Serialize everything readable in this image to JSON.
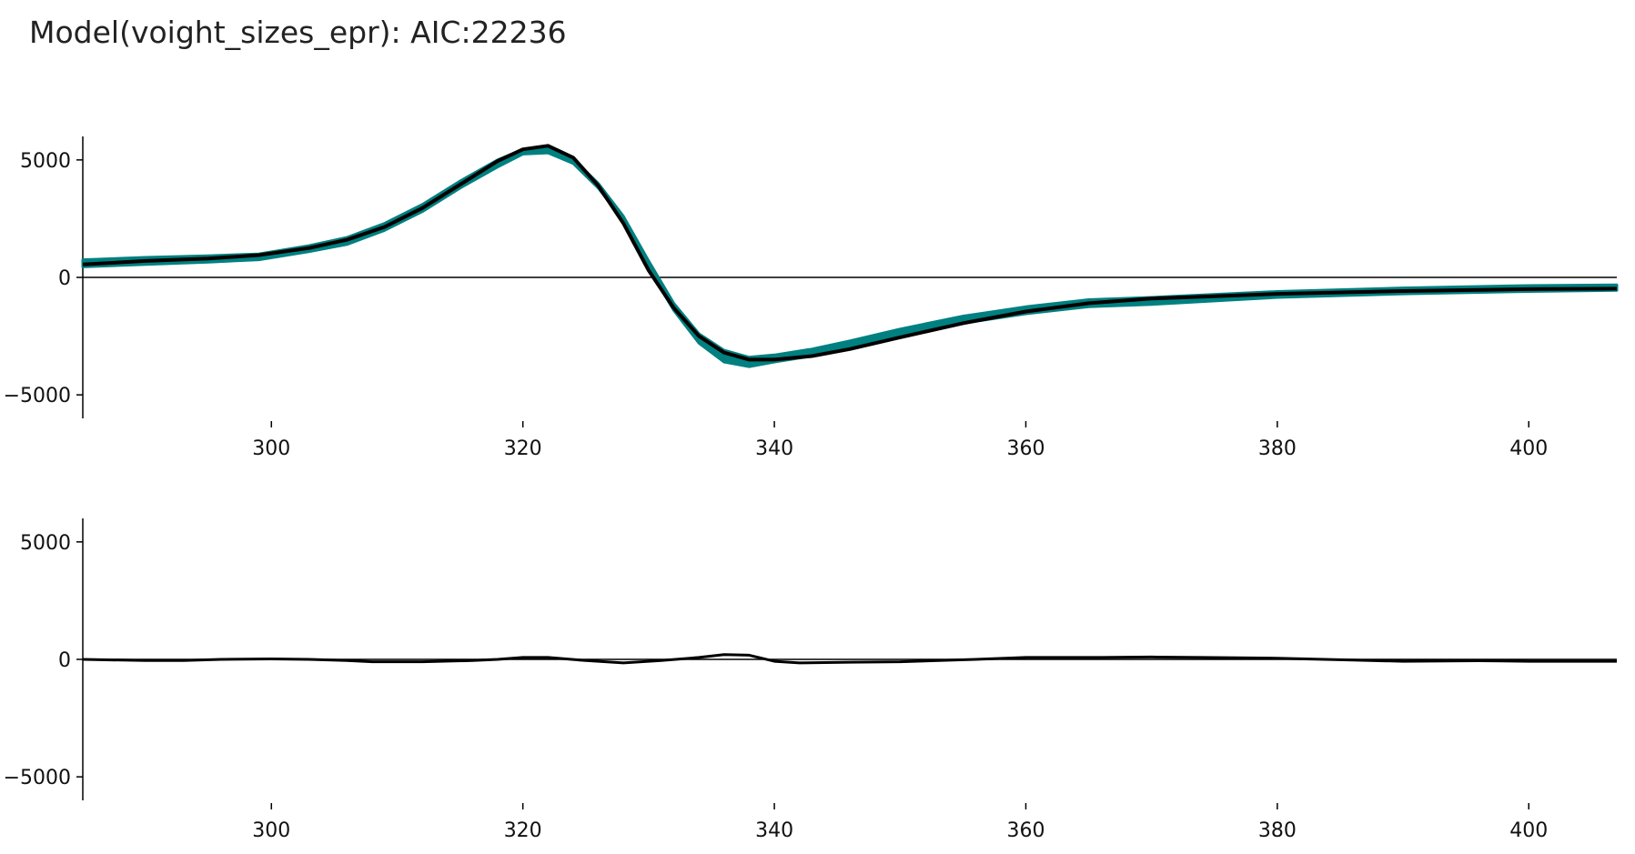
{
  "title": "Model(voight_sizes_epr): AIC:22236",
  "colors": {
    "band": "#008080",
    "fit": "#000000",
    "axis": "#000000"
  },
  "chart_data": [
    {
      "type": "line",
      "panel": "fit",
      "xlim": [
        285,
        407
      ],
      "ylim": [
        -6000,
        6000
      ],
      "xticks": [
        300,
        320,
        340,
        360,
        380,
        400
      ],
      "yticks": [
        5000,
        0,
        -5000
      ],
      "xtick_labels": [
        "300",
        "320",
        "340",
        "360",
        "380",
        "400"
      ],
      "ytick_labels": [
        "5000",
        "0",
        "−5000"
      ],
      "zero_line": true,
      "series": [
        {
          "role": "band",
          "color": "#008080",
          "x": [
            285,
            290,
            295,
            299,
            303,
            306,
            309,
            312,
            315,
            318,
            320,
            322,
            324,
            326,
            328,
            330,
            332,
            334,
            336,
            338,
            340,
            343,
            346,
            350,
            355,
            360,
            365,
            370,
            380,
            390,
            400,
            407
          ],
          "upper": [
            750,
            850,
            920,
            1000,
            1350,
            1700,
            2300,
            3100,
            4100,
            5000,
            5450,
            5500,
            5050,
            4000,
            2600,
            700,
            -1100,
            -2400,
            -3100,
            -3400,
            -3300,
            -3050,
            -2700,
            -2200,
            -1650,
            -1250,
            -950,
            -850,
            -600,
            -450,
            -350,
            -320
          ],
          "lower": [
            450,
            550,
            650,
            750,
            1100,
            1400,
            2000,
            2800,
            3800,
            4700,
            5250,
            5300,
            4850,
            3800,
            2400,
            400,
            -1400,
            -2800,
            -3600,
            -3800,
            -3600,
            -3350,
            -3000,
            -2450,
            -1950,
            -1550,
            -1250,
            -1150,
            -850,
            -700,
            -600,
            -550
          ]
        },
        {
          "role": "fit",
          "color": "#000000",
          "x": [
            285,
            290,
            295,
            299,
            303,
            306,
            309,
            312,
            315,
            318,
            320,
            322,
            324,
            326,
            328,
            330,
            332,
            334,
            336,
            338,
            340,
            343,
            346,
            350,
            355,
            360,
            365,
            370,
            380,
            390,
            400,
            407
          ],
          "y": [
            550,
            700,
            800,
            950,
            1250,
            1600,
            2150,
            2950,
            3950,
            4950,
            5450,
            5600,
            5100,
            3900,
            2300,
            300,
            -1300,
            -2500,
            -3200,
            -3500,
            -3500,
            -3350,
            -3050,
            -2550,
            -1950,
            -1450,
            -1100,
            -900,
            -700,
            -580,
            -500,
            -480
          ]
        }
      ]
    },
    {
      "type": "line",
      "panel": "residuals",
      "xlim": [
        285,
        407
      ],
      "ylim": [
        -6000,
        6000
      ],
      "xticks": [
        300,
        320,
        340,
        360,
        380,
        400
      ],
      "yticks": [
        5000,
        0,
        -5000
      ],
      "xtick_labels": [
        "300",
        "320",
        "340",
        "360",
        "380",
        "400"
      ],
      "ytick_labels": [
        "5000",
        "0",
        "−5000"
      ],
      "zero_line": true,
      "series": [
        {
          "role": "residual",
          "color": "#000000",
          "x": [
            285,
            290,
            293,
            296,
            300,
            303,
            306,
            308,
            312,
            316,
            318,
            320,
            322,
            325,
            328,
            331,
            334,
            336,
            338,
            340,
            342,
            346,
            350,
            356,
            360,
            366,
            370,
            374,
            380,
            386,
            390,
            396,
            400,
            407
          ],
          "y": [
            0,
            -50,
            -50,
            0,
            20,
            0,
            -50,
            -100,
            -100,
            -50,
            0,
            80,
            80,
            -50,
            -150,
            -50,
            80,
            200,
            180,
            -80,
            -150,
            -120,
            -100,
            0,
            80,
            80,
            100,
            80,
            50,
            -30,
            -80,
            -60,
            -80,
            -80
          ]
        }
      ]
    }
  ]
}
